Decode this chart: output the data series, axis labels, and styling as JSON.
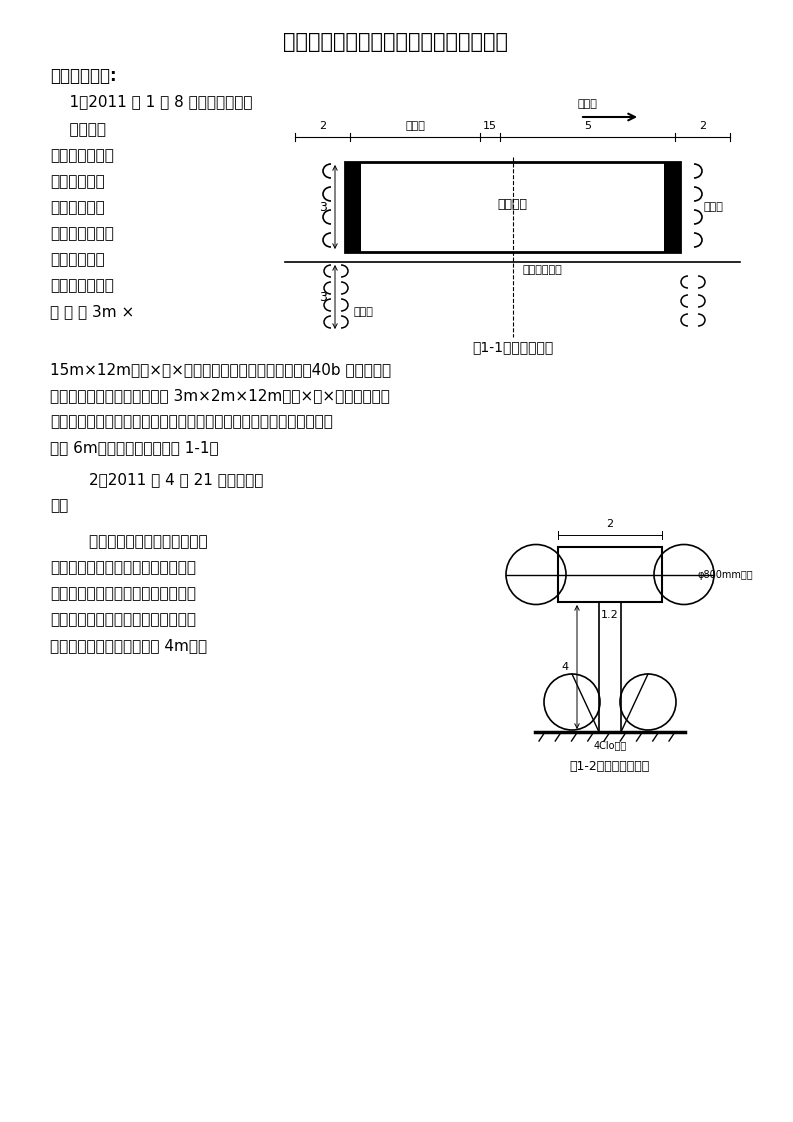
{
  "title": "红桥南排水泵站出水口穿堤涵洞施工方案",
  "section1_title": "一、施工围堰:",
  "para1": "    1、2011 年 1 月 8 日搭设小围堰。",
  "side_text_lines": [
    "    岸上工程",
    "施工期间，为解",
    "决闭水问题设",
    "计在河道内搭",
    "设小型围堰。围",
    "堰形式采用拉",
    "森桩结构，尺寸",
    "设 计 为 3m ×"
  ],
  "para2_lines": [
    "15m×12m（长×宽×高）。拉森桩两侧采用钢板桩（40b 工字钢采用",
    "丁拐设置）围堵闭水，尺寸为 3m×2m×12m（长×宽×高），钢板桩",
    "与拉森桩之间填土。自钢板桩迎水面起沿垂直河岸方向做一排旋喷桩，",
    "总距 6m，辅助闭水。（见图 1-1）"
  ],
  "para3_line1": "        2、2011 年 4 月 21 日搭设大围",
  "para3_line2": "堰。",
  "side_text2_lines": [
    "        由于排水闸的出水口设在子牙",
    "河岸边，出水口外设有消力池及格宾",
    "石笼等构筑物，因此必须在河内搭设",
    "临时围堰，以保证工程干场作业。围",
    "堰采用箱式结构，箱体宽度 4m，迎"
  ],
  "fig1_caption": "图1-1小围堰示意图",
  "fig2_caption": "图1-2围堰剖面结构图",
  "water_label": "子河流",
  "lassen_label": "拉森桩",
  "inner_label": "工程船坞",
  "river_bank_label": "现状河坡护岸",
  "spray_pile_label": "旋喷桩",
  "steel_pile_label": "钢板桩",
  "pipe_label": "φ800mm钢管",
  "pile_label": "4Clo工桩",
  "bg_color": "#ffffff",
  "text_color": "#000000"
}
